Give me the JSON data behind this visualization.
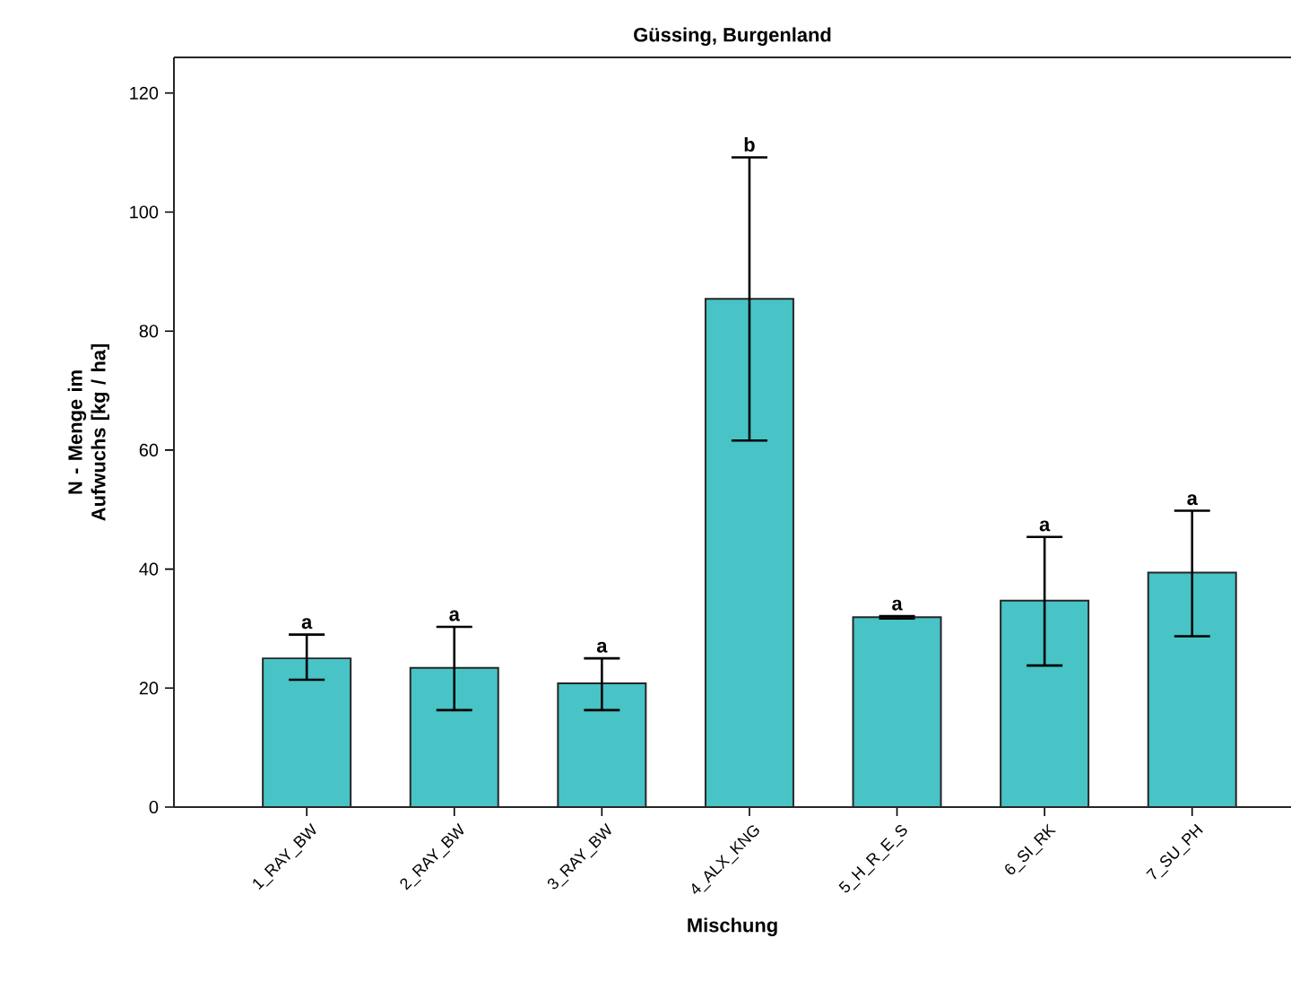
{
  "chart_data": {
    "type": "bar",
    "title": "Güssing, Burgenland",
    "xlabel": "Mischung",
    "ylabel": "N - Menge im Aufwuchs [kg / ha]",
    "categories": [
      "1_RAY_BW",
      "2_RAY_BW",
      "3_RAY_BW",
      "4_ALX_KNG",
      "5_H_R_E_S",
      "6_SI_RK",
      "7_SU_PH"
    ],
    "values": [
      25.0,
      23.4,
      20.8,
      85.4,
      31.9,
      34.7,
      39.4
    ],
    "errors": [
      [
        21.4,
        29.0
      ],
      [
        16.3,
        30.3
      ],
      [
        16.3,
        25.0
      ],
      [
        61.6,
        109.2
      ],
      [
        31.7,
        32.1
      ],
      [
        23.8,
        45.4
      ],
      [
        28.7,
        49.8
      ]
    ],
    "color": "#48c3c6",
    "ylim": [
      0,
      126
    ],
    "yticks": [
      0,
      20,
      40,
      60,
      80,
      100,
      120
    ],
    "annotations": [
      {
        "text": "a",
        "x": "1_RAY_BW",
        "y": 29.0
      },
      {
        "text": "a",
        "x": "2_RAY_BW",
        "y": 30.3
      },
      {
        "text": "a",
        "x": "3_RAY_BW",
        "y": 25.0
      },
      {
        "text": "b",
        "x": "4_ALX_KNG",
        "y": 109.2
      },
      {
        "text": "a",
        "x": "5_H_R_E_S",
        "y": 32.1
      },
      {
        "text": "a",
        "x": "6_SI_RK",
        "y": 45.4
      },
      {
        "text": "a",
        "x": "7_SU_PH",
        "y": 49.8
      }
    ]
  }
}
